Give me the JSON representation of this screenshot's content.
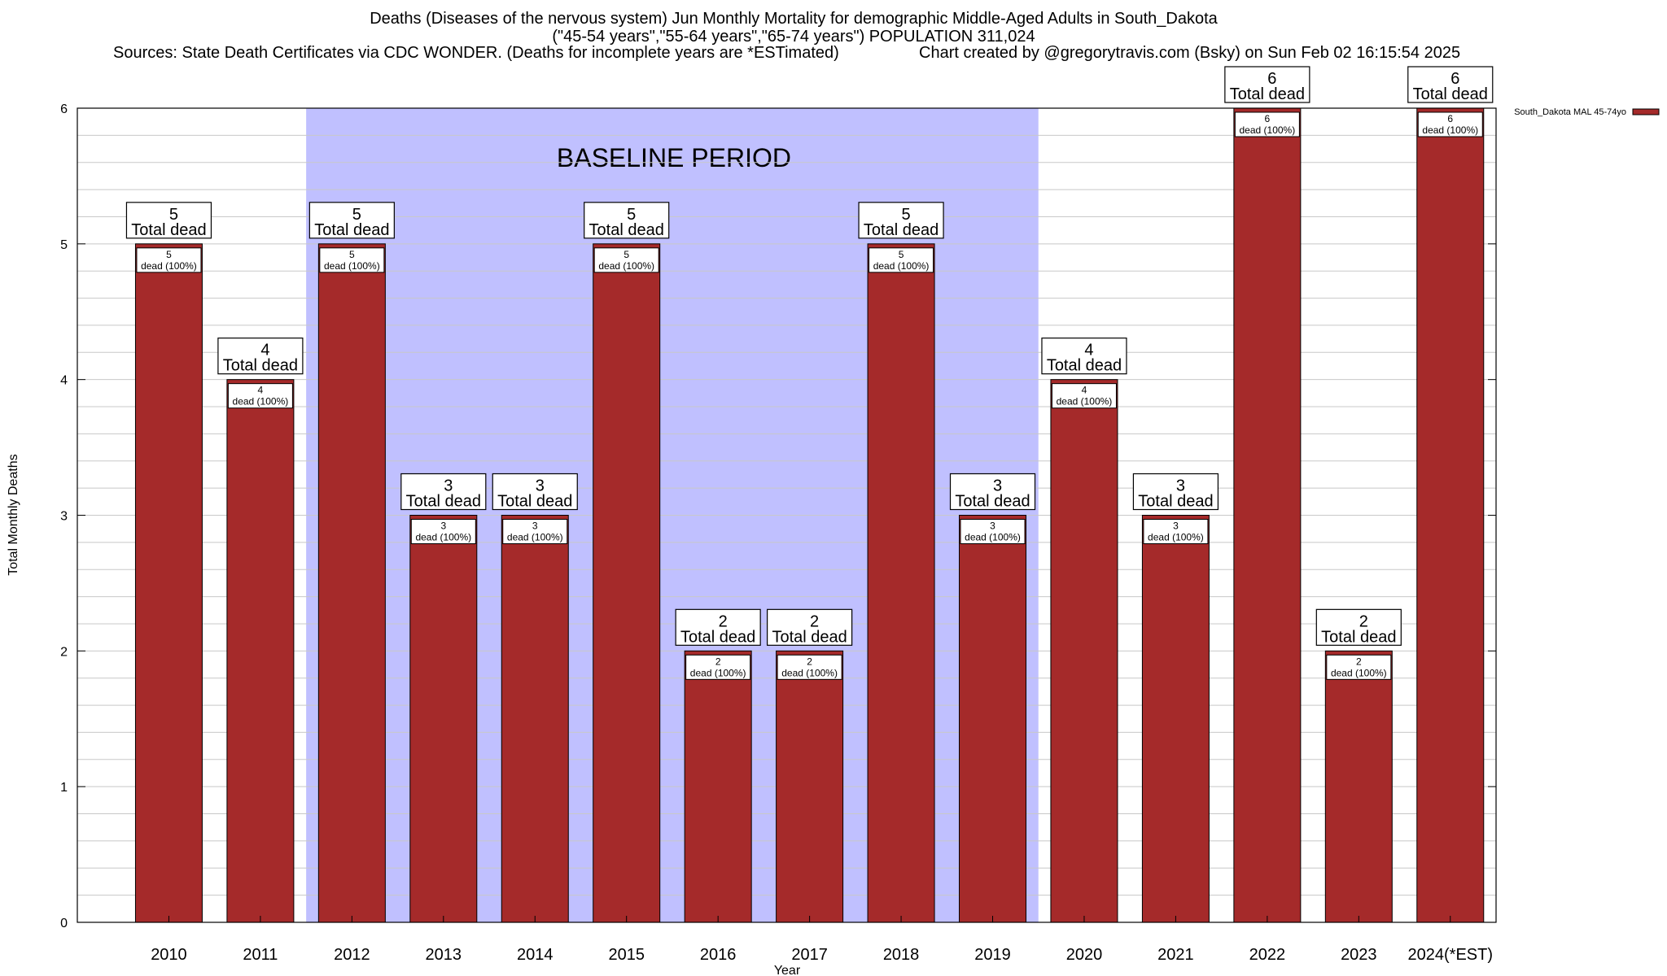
{
  "title": {
    "line1": "Deaths (Diseases of the nervous system) Jun Monthly Mortality for demographic Middle-Aged Adults in South_Dakota",
    "line2": "(\"45-54 years\",\"55-64 years\",\"65-74 years\") POPULATION 311,024",
    "line3_left": "Sources: State Death Certificates via CDC WONDER. (Deaths for incomplete years are *ESTimated)",
    "line3_right": "Chart created by @gregorytravis.com (Bsky) on Sun Feb 02 16:15:54 2025"
  },
  "baseline_label": "BASELINE PERIOD",
  "chart_data": {
    "type": "bar",
    "xlabel": "Year",
    "ylabel": "Total Monthly Deaths",
    "ylim": [
      0,
      6
    ],
    "yticks": [
      0,
      1,
      2,
      3,
      4,
      5,
      6
    ],
    "grid": true,
    "legend_position": "top-right",
    "baseline_period": [
      "2012",
      "2019"
    ],
    "categories": [
      "2010",
      "2011",
      "2012",
      "2013",
      "2014",
      "2015",
      "2016",
      "2017",
      "2018",
      "2019",
      "2020",
      "2021",
      "2022",
      "2023",
      "2024(*EST)"
    ],
    "series": [
      {
        "name": "South_Dakota MAL 45-74yo",
        "color": "#a52a2a",
        "values": [
          5,
          4,
          5,
          3,
          3,
          5,
          2,
          2,
          5,
          3,
          4,
          3,
          6,
          2,
          6
        ]
      }
    ],
    "total_label": "Total dead",
    "inner_label_suffix": "dead (100%)"
  },
  "colors": {
    "bar": "#a52a2a",
    "baseline_fill": "#c0c0ff",
    "grid": "#c8c8c8"
  }
}
